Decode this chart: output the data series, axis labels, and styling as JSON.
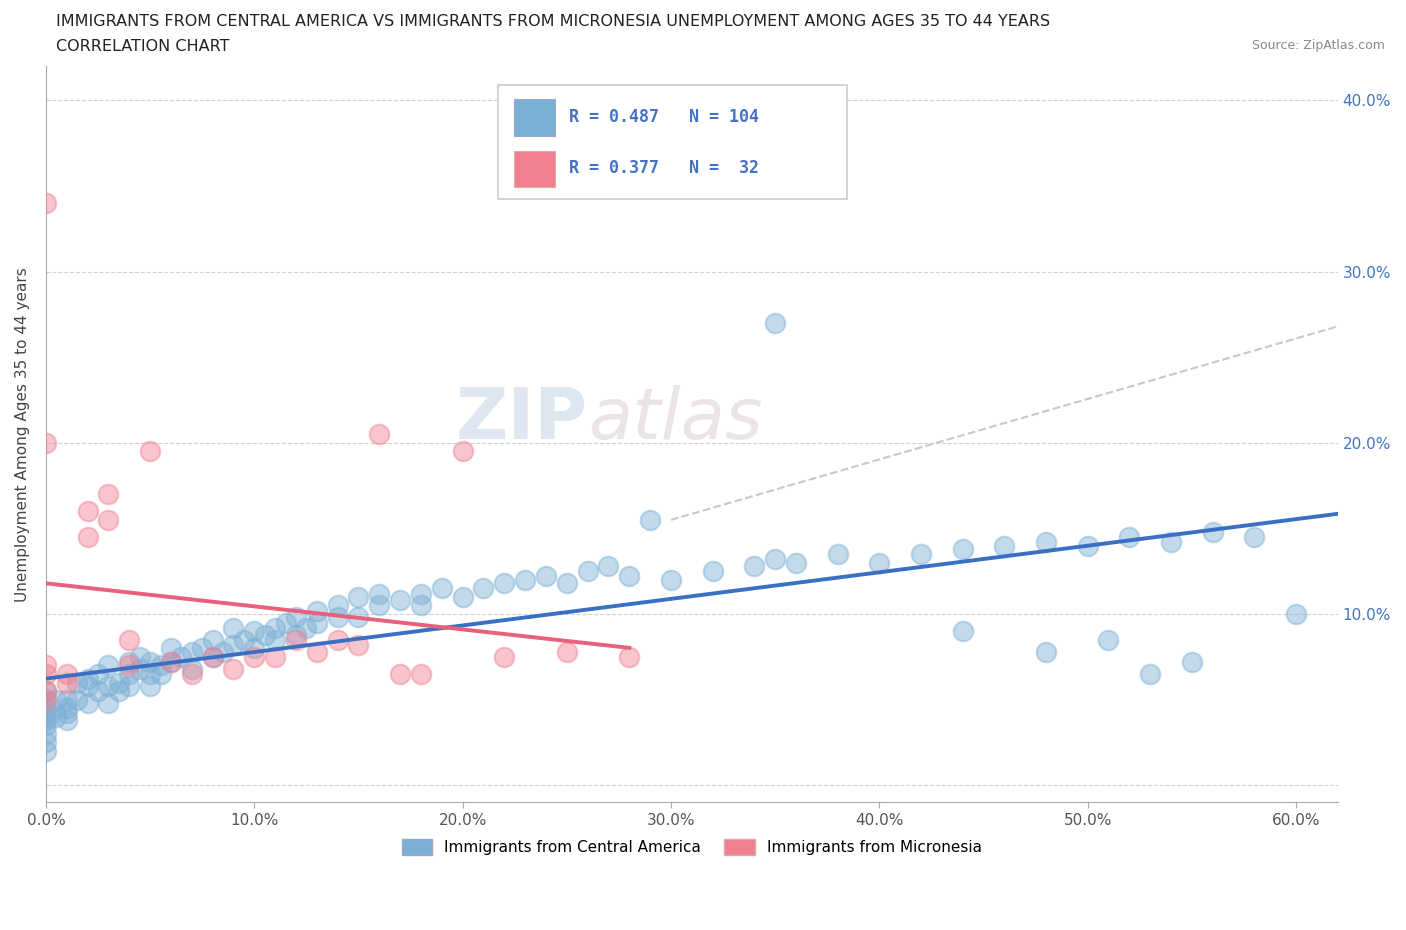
{
  "title_line1": "IMMIGRANTS FROM CENTRAL AMERICA VS IMMIGRANTS FROM MICRONESIA UNEMPLOYMENT AMONG AGES 35 TO 44 YEARS",
  "title_line2": "CORRELATION CHART",
  "source": "Source: ZipAtlas.com",
  "ylabel": "Unemployment Among Ages 35 to 44 years",
  "xlim": [
    0.0,
    0.62
  ],
  "ylim": [
    -0.01,
    0.42
  ],
  "color_blue": "#7bafd4",
  "color_pink": "#f08090",
  "trend_blue": "#3a6fc4",
  "trend_pink": "#e8607a",
  "trend_gray": "#c8c8c8",
  "legend_R1": "R = 0.487",
  "legend_N1": "N = 104",
  "legend_R2": "R = 0.377",
  "legend_N2": "N =  32",
  "watermark_zip": "ZIP",
  "watermark_atlas": "atlas",
  "ca_x": [
    0.0,
    0.0,
    0.0,
    0.0,
    0.0,
    0.0,
    0.0,
    0.0,
    0.0,
    0.0,
    0.005,
    0.005,
    0.01,
    0.01,
    0.01,
    0.01,
    0.015,
    0.015,
    0.02,
    0.02,
    0.02,
    0.025,
    0.025,
    0.03,
    0.03,
    0.03,
    0.035,
    0.035,
    0.04,
    0.04,
    0.04,
    0.045,
    0.045,
    0.05,
    0.05,
    0.05,
    0.055,
    0.055,
    0.06,
    0.06,
    0.065,
    0.07,
    0.07,
    0.075,
    0.08,
    0.08,
    0.085,
    0.09,
    0.09,
    0.095,
    0.1,
    0.1,
    0.105,
    0.11,
    0.11,
    0.115,
    0.12,
    0.12,
    0.125,
    0.13,
    0.13,
    0.14,
    0.14,
    0.15,
    0.15,
    0.16,
    0.16,
    0.17,
    0.18,
    0.18,
    0.19,
    0.2,
    0.21,
    0.22,
    0.23,
    0.24,
    0.25,
    0.26,
    0.27,
    0.28,
    0.3,
    0.32,
    0.34,
    0.35,
    0.36,
    0.38,
    0.4,
    0.42,
    0.44,
    0.46,
    0.48,
    0.5,
    0.52,
    0.54,
    0.56,
    0.58,
    0.6,
    0.35,
    0.44,
    0.29,
    0.51,
    0.48,
    0.55,
    0.53
  ],
  "ca_y": [
    0.02,
    0.03,
    0.04,
    0.05,
    0.035,
    0.045,
    0.025,
    0.055,
    0.038,
    0.042,
    0.04,
    0.05,
    0.042,
    0.038,
    0.05,
    0.045,
    0.05,
    0.06,
    0.048,
    0.058,
    0.062,
    0.055,
    0.065,
    0.058,
    0.048,
    0.07,
    0.06,
    0.055,
    0.065,
    0.072,
    0.058,
    0.068,
    0.075,
    0.065,
    0.072,
    0.058,
    0.07,
    0.065,
    0.072,
    0.08,
    0.075,
    0.078,
    0.068,
    0.08,
    0.075,
    0.085,
    0.078,
    0.082,
    0.092,
    0.085,
    0.09,
    0.08,
    0.088,
    0.092,
    0.085,
    0.095,
    0.088,
    0.098,
    0.092,
    0.095,
    0.102,
    0.098,
    0.105,
    0.098,
    0.11,
    0.105,
    0.112,
    0.108,
    0.112,
    0.105,
    0.115,
    0.11,
    0.115,
    0.118,
    0.12,
    0.122,
    0.118,
    0.125,
    0.128,
    0.122,
    0.12,
    0.125,
    0.128,
    0.132,
    0.13,
    0.135,
    0.13,
    0.135,
    0.138,
    0.14,
    0.142,
    0.14,
    0.145,
    0.142,
    0.148,
    0.145,
    0.1,
    0.27,
    0.09,
    0.155,
    0.085,
    0.078,
    0.072,
    0.065
  ],
  "mic_x": [
    0.0,
    0.0,
    0.0,
    0.0,
    0.0,
    0.0,
    0.01,
    0.01,
    0.02,
    0.02,
    0.03,
    0.03,
    0.04,
    0.04,
    0.05,
    0.06,
    0.07,
    0.08,
    0.09,
    0.1,
    0.11,
    0.12,
    0.13,
    0.14,
    0.15,
    0.16,
    0.17,
    0.18,
    0.2,
    0.22,
    0.25,
    0.28
  ],
  "mic_y": [
    0.05,
    0.055,
    0.07,
    0.065,
    0.34,
    0.2,
    0.06,
    0.065,
    0.16,
    0.145,
    0.155,
    0.17,
    0.085,
    0.07,
    0.195,
    0.072,
    0.065,
    0.075,
    0.068,
    0.075,
    0.075,
    0.085,
    0.078,
    0.085,
    0.082,
    0.205,
    0.065,
    0.065,
    0.195,
    0.075,
    0.078,
    0.075
  ],
  "gray_line_x": [
    0.3,
    0.62
  ],
  "gray_line_y": [
    0.155,
    0.268
  ]
}
